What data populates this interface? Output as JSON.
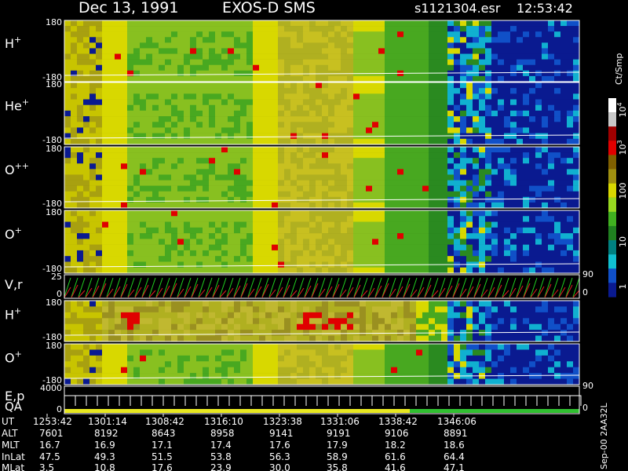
{
  "header": {
    "date": "Dec 13, 1991",
    "instrument": "EXOS-D SMS",
    "file": "s1121304.esr",
    "time": "12:53:42"
  },
  "panels": [
    {
      "label": "H",
      "superscript": "+",
      "left_ticks": [
        "180",
        "-180"
      ]
    },
    {
      "label": "He",
      "superscript": "+",
      "left_ticks": [
        "180",
        "-180"
      ]
    },
    {
      "label": "O",
      "superscript": "++",
      "left_ticks": [
        "180",
        "-180"
      ]
    },
    {
      "label": "O",
      "superscript": "+",
      "left_ticks": [
        "180",
        "-180"
      ]
    },
    {
      "label": "V,r",
      "left_ticks": [
        "25",
        "0"
      ],
      "right_ticks": [
        "90",
        "0"
      ]
    },
    {
      "label": "H",
      "superscript": "+",
      "left_ticks": [
        "180",
        "-180"
      ]
    },
    {
      "label": "O",
      "superscript": "+",
      "left_ticks": [
        "180",
        "-180"
      ]
    },
    {
      "label": "E,p",
      "label2": "QA",
      "left_ticks": [
        "4000",
        "0"
      ],
      "right_ticks": [
        "90",
        "0"
      ]
    }
  ],
  "colorbar": {
    "title": "Ct/Smp",
    "ticks": [
      {
        "base": "10",
        "exponent": "4"
      },
      {
        "base": "10",
        "exponent": "3"
      },
      {
        "base": "100"
      },
      {
        "base": "10"
      },
      {
        "base": "1"
      }
    ]
  },
  "side_note": "Sep-00 2AA32L",
  "table": {
    "row_labels": [
      "UT",
      "ALT",
      "MLT",
      "InLat",
      "MLat"
    ],
    "rows": [
      [
        "1253:42",
        "1301:14",
        "1308:42",
        "1316:10",
        "1323:38",
        "1331:06",
        "1338:42",
        "1346:06"
      ],
      [
        "7601",
        "8192",
        "8643",
        "8958",
        "9141",
        "9191",
        "9106",
        "8891"
      ],
      [
        "16.7",
        "16.9",
        "17.1",
        "17.4",
        "17.6",
        "17.9",
        "18.2",
        "18.6"
      ],
      [
        "47.5",
        "49.3",
        "51.5",
        "53.8",
        "56.3",
        "58.9",
        "61.6",
        "64.4"
      ],
      [
        "3.5",
        "10.8",
        "17.6",
        "23.9",
        "30.0",
        "35.8",
        "41.6",
        "47.1"
      ]
    ]
  }
}
